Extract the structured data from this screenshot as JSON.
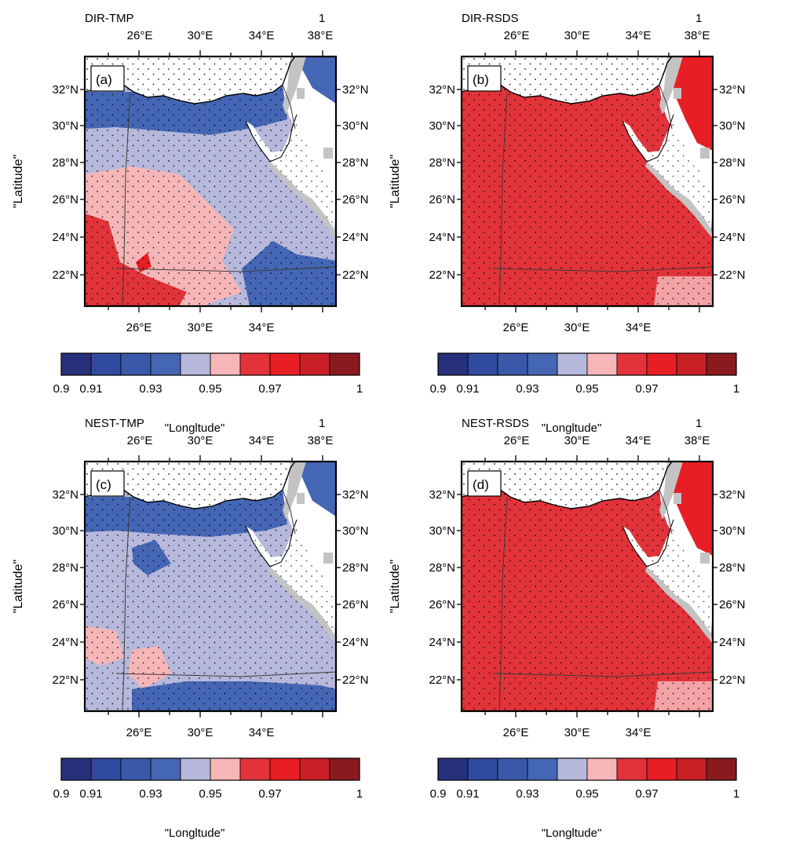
{
  "figure": {
    "panels": [
      {
        "id": "a",
        "title": "DIR-TMP",
        "tag": "(a)",
        "corner": "1",
        "variant": "tmp-dir"
      },
      {
        "id": "b",
        "title": "DIR-RSDS",
        "tag": "(b)",
        "corner": "1",
        "variant": "rsds"
      },
      {
        "id": "c",
        "title": "NEST-TMP",
        "tag": "(c)",
        "corner": "1",
        "variant": "tmp-nest"
      },
      {
        "id": "d",
        "title": "NEST-RSDS",
        "tag": "(d)",
        "corner": "1",
        "variant": "rsds"
      }
    ],
    "top_lon_ticks": [
      "26°E",
      "30°E",
      "34°E",
      "38°E"
    ],
    "bottom_lon_ticks": [
      "26°E",
      "30°E",
      "34°E"
    ],
    "lat_ticks": [
      "32°N",
      "30°N",
      "28°N",
      "26°N",
      "24°N",
      "22°N"
    ],
    "ylabel": "\"Latitude\"",
    "xlabel": "\"Longltude\"",
    "colorbar": {
      "tick_labels": [
        "0.9",
        "0.91",
        "0.93",
        "0.95",
        "0.97",
        "1"
      ],
      "tick_values": [
        0.9,
        0.91,
        0.93,
        0.95,
        0.97,
        1.0
      ],
      "range": [
        0.9,
        1.0
      ],
      "colors": [
        "#27307a",
        "#2f4a9e",
        "#3a58aa",
        "#4566b4",
        "#b6b8dc",
        "#f6b6b8",
        "#e2333a",
        "#e81e25",
        "#c81f26",
        "#8a1a1e"
      ]
    },
    "map_colors": {
      "land_gray": "#c3c3c3",
      "sea": "#ffffff",
      "border": "#3a3a3a"
    }
  }
}
